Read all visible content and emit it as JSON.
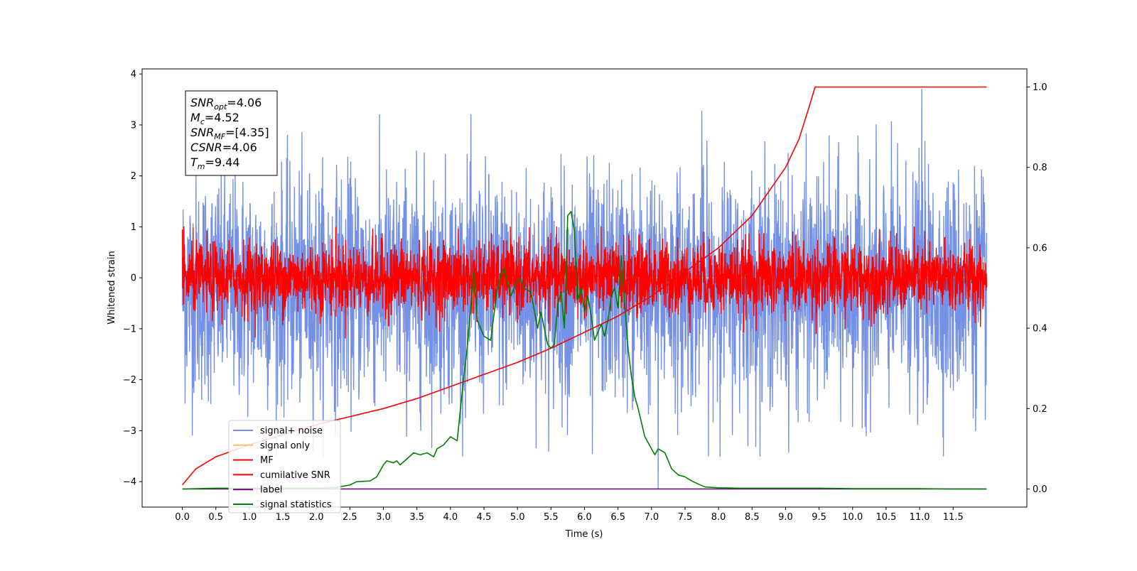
{
  "chart_data": {
    "type": "line",
    "title": "",
    "xlabel": "Time (s)",
    "ylabel": "Whitened strain",
    "y2label": "",
    "xlim": [
      -0.6,
      12.6
    ],
    "ylim": [
      -4.5,
      4.1
    ],
    "y2lim": [
      -0.045,
      1.045
    ],
    "xticks": [
      0.0,
      0.5,
      1.0,
      1.5,
      2.0,
      2.5,
      3.0,
      3.5,
      4.0,
      4.5,
      5.0,
      5.5,
      6.0,
      6.5,
      7.0,
      7.5,
      8.0,
      8.5,
      9.0,
      9.5,
      10.0,
      10.5,
      11.0,
      11.5
    ],
    "xtick_labels": [
      "0.0",
      "0.5",
      "1.0",
      "1.5",
      "2.0",
      "2.5",
      "3.0",
      "3.5",
      "4.0",
      "4.5",
      "5.0",
      "5.5",
      "6.0",
      "6.5",
      "7.0",
      "7.5",
      "8.0",
      "8.5",
      "9.0",
      "9.5",
      "10.0",
      "10.5",
      "11.0",
      "11.5"
    ],
    "yticks": [
      4,
      3,
      2,
      1,
      0,
      -1,
      -2,
      -3,
      -4
    ],
    "ytick_labels": [
      "4",
      "3",
      "2",
      "1",
      "0",
      "−1",
      "−2",
      "−3",
      "−4"
    ],
    "y2ticks": [
      1.0,
      0.8,
      0.6,
      0.4,
      0.2,
      0.0
    ],
    "y2tick_labels": [
      "1.0",
      "0.8",
      "0.6",
      "0.4",
      "0.2",
      "0.0"
    ],
    "grid": false,
    "legend_position": "lower-left",
    "annotation": {
      "lines": [
        {
          "base": "SNR",
          "sub": "opt",
          "value": "=4.06"
        },
        {
          "base": "M",
          "sub": "c",
          "value": "=4.52"
        },
        {
          "base": "SNR",
          "sub": "MF",
          "value": "=[4.35]"
        },
        {
          "base": "CSNR",
          "sub": "",
          "value": "=4.06"
        },
        {
          "base": "T",
          "sub": "m",
          "value": "=9.44"
        }
      ]
    },
    "noise": {
      "x_range": [
        0.0,
        12.0
      ],
      "signal_noise_spread": 1.1,
      "mf_spread": 0.35,
      "sample_count": 3000,
      "spikes": [
        {
          "x": 11.03,
          "y": 3.7
        },
        {
          "x": 7.1,
          "y": -4.15
        },
        {
          "x": 6.12,
          "y": -3.45
        },
        {
          "x": 7.75,
          "y": 3.27
        }
      ]
    },
    "series": [
      {
        "name": "signal+ noise",
        "color": "#7591e6",
        "kind": "noise",
        "axis": "left"
      },
      {
        "name": "signal only",
        "color": "#ffbf66",
        "kind": "flat",
        "axis": "left",
        "y": 0.0
      },
      {
        "name": "MF",
        "color": "#ff0000",
        "kind": "noise",
        "axis": "left"
      },
      {
        "name": "cumilative SNR",
        "color": "#ff0000",
        "kind": "line",
        "axis": "right",
        "x": [
          0.0,
          0.2,
          0.5,
          1.0,
          1.5,
          2.0,
          2.5,
          3.0,
          3.5,
          4.0,
          4.5,
          5.0,
          5.5,
          6.0,
          6.5,
          7.0,
          7.5,
          8.0,
          8.5,
          9.0,
          9.2,
          9.35,
          9.44,
          12.0
        ],
        "y": [
          0.01,
          0.05,
          0.08,
          0.11,
          0.135,
          0.16,
          0.18,
          0.2,
          0.225,
          0.255,
          0.285,
          0.315,
          0.35,
          0.39,
          0.43,
          0.48,
          0.54,
          0.6,
          0.68,
          0.8,
          0.87,
          0.95,
          1.0,
          1.0
        ]
      },
      {
        "name": "label",
        "color": "#6a0070",
        "kind": "line",
        "axis": "right",
        "x": [
          0.0,
          12.0
        ],
        "y": [
          0.0,
          0.0
        ]
      },
      {
        "name": "signal statistics",
        "color": "#008000",
        "kind": "line",
        "axis": "right",
        "x": [
          0.0,
          0.5,
          1.0,
          1.5,
          2.0,
          2.3,
          2.5,
          2.6,
          2.8,
          2.9,
          3.0,
          3.05,
          3.15,
          3.2,
          3.25,
          3.35,
          3.45,
          3.55,
          3.65,
          3.75,
          3.8,
          3.9,
          4.0,
          4.1,
          4.2,
          4.25,
          4.3,
          4.35,
          4.4,
          4.5,
          4.6,
          4.7,
          4.75,
          4.8,
          4.9,
          5.0,
          5.05,
          5.1,
          5.2,
          5.3,
          5.35,
          5.45,
          5.5,
          5.55,
          5.6,
          5.65,
          5.7,
          5.75,
          5.8,
          5.85,
          5.9,
          5.95,
          6.0,
          6.05,
          6.1,
          6.15,
          6.2,
          6.25,
          6.3,
          6.35,
          6.4,
          6.45,
          6.5,
          6.55,
          6.6,
          6.65,
          6.7,
          6.75,
          6.8,
          6.9,
          7.0,
          7.05,
          7.1,
          7.2,
          7.3,
          7.4,
          7.5,
          7.6,
          7.7,
          7.8,
          8.0,
          8.3,
          8.6,
          9.0,
          9.5,
          10.0,
          11.0,
          11.5,
          12.0
        ],
        "y": [
          0.0,
          0.002,
          0.002,
          0.002,
          0.002,
          0.004,
          0.01,
          0.018,
          0.02,
          0.03,
          0.06,
          0.07,
          0.065,
          0.07,
          0.06,
          0.075,
          0.09,
          0.085,
          0.09,
          0.08,
          0.1,
          0.11,
          0.13,
          0.12,
          0.28,
          0.35,
          0.45,
          0.54,
          0.42,
          0.38,
          0.37,
          0.5,
          0.53,
          0.55,
          0.48,
          0.52,
          0.52,
          0.5,
          0.49,
          0.4,
          0.44,
          0.36,
          0.35,
          0.36,
          0.46,
          0.49,
          0.4,
          0.68,
          0.69,
          0.64,
          0.47,
          0.5,
          0.44,
          0.48,
          0.43,
          0.37,
          0.39,
          0.41,
          0.38,
          0.42,
          0.48,
          0.5,
          0.45,
          0.58,
          0.46,
          0.35,
          0.28,
          0.23,
          0.2,
          0.13,
          0.1,
          0.085,
          0.1,
          0.09,
          0.05,
          0.035,
          0.03,
          0.02,
          0.012,
          0.005,
          0.003,
          0.002,
          0.002,
          0.002,
          0.002,
          0.001,
          0.001,
          0.0,
          0.0
        ]
      }
    ]
  }
}
